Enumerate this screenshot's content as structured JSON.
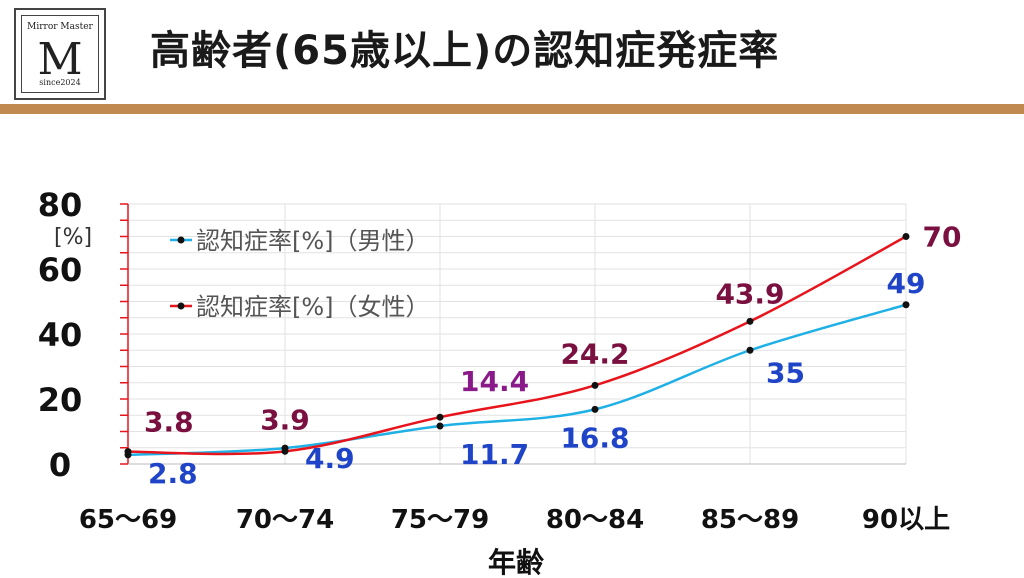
{
  "header": {
    "title": "高齢者(65歳以上)の認知症発症率",
    "logo": {
      "brand": "Mirror Master",
      "letter": "M",
      "since": "since2024"
    },
    "accent_color": "#c0894f"
  },
  "chart_data": {
    "type": "line",
    "title": "",
    "ylabel": "[%]",
    "xlabel": "年齢",
    "categories": [
      "65～69",
      "70～74",
      "75～79",
      "80～84",
      "85～89",
      "90以上"
    ],
    "ylim": [
      0,
      80
    ],
    "yticks": [
      0,
      20,
      40,
      60,
      80
    ],
    "grid": true,
    "legend_position": "top-left",
    "series": [
      {
        "name": "認知症率[%]（男性）",
        "color": "#1fb0e6",
        "label_color": "#1f44c8",
        "values": [
          2.8,
          4.9,
          11.7,
          16.8,
          35,
          49
        ],
        "labels": [
          "2.8",
          "4.9",
          "11.7",
          "16.8",
          "35",
          "49"
        ]
      },
      {
        "name": "認知症率[%]（女性）",
        "color": "#e8141c",
        "label_color": "#7a1040",
        "values": [
          3.8,
          3.9,
          14.4,
          24.2,
          43.9,
          70
        ],
        "labels": [
          "3.8",
          "3.9",
          "14.4",
          "24.2",
          "43.9",
          "70"
        ]
      }
    ]
  }
}
